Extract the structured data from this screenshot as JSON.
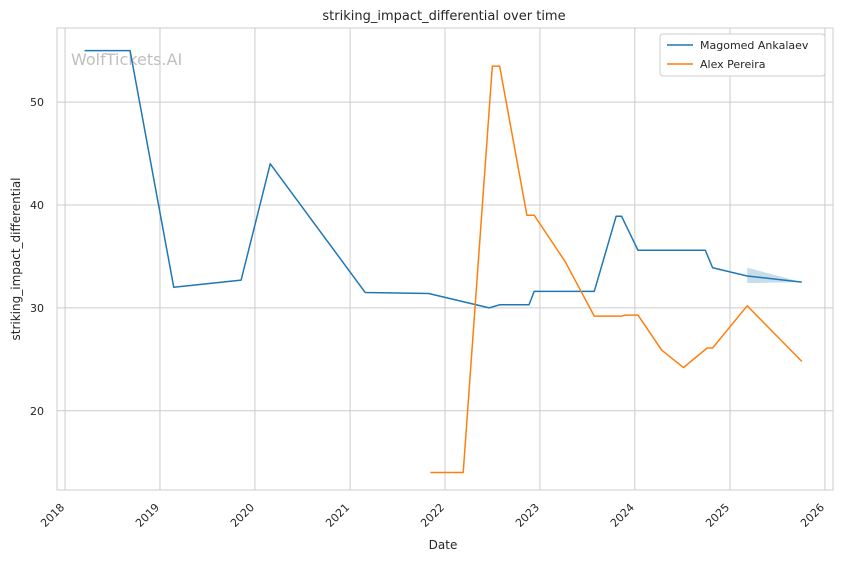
{
  "chart_data": {
    "type": "line",
    "title": "striking_impact_differential over time",
    "xlabel": "Date",
    "ylabel": "striking_impact_differential",
    "watermark": "WolfTickets.AI",
    "x_ticks": [
      "2018",
      "2019",
      "2020",
      "2021",
      "2022",
      "2023",
      "2024",
      "2025",
      "2026"
    ],
    "y_ticks": [
      20,
      30,
      40,
      50
    ],
    "xlim": [
      "2017-12-01",
      "2026-02-01"
    ],
    "ylim": [
      12.3,
      57.2
    ],
    "grid": true,
    "legend_position": "top-right",
    "series": [
      {
        "name": "Magomed Ankalaev",
        "color": "#1f77b4",
        "points": [
          [
            "2018-03-17",
            55.0
          ],
          [
            "2018-09-08",
            55.0
          ],
          [
            "2019-02-23",
            32.0
          ],
          [
            "2019-11-09",
            32.7
          ],
          [
            "2020-02-29",
            44.0
          ],
          [
            "2021-02-28",
            31.5
          ],
          [
            "2021-10-30",
            31.4
          ],
          [
            "2022-06-20",
            30.0
          ],
          [
            "2022-07-30",
            30.3
          ],
          [
            "2022-11-20",
            30.3
          ],
          [
            "2022-12-10",
            31.6
          ],
          [
            "2023-07-29",
            31.6
          ],
          [
            "2023-10-21",
            38.9
          ],
          [
            "2023-11-11",
            38.9
          ],
          [
            "2024-01-13",
            35.6
          ],
          [
            "2024-09-28",
            35.6
          ],
          [
            "2024-10-26",
            33.9
          ],
          [
            "2025-03-08",
            33.1
          ],
          [
            "2025-10-04",
            32.5
          ]
        ],
        "band": [
          [
            "2025-03-08",
            32.4,
            33.9
          ],
          [
            "2025-10-04",
            32.5,
            32.5
          ]
        ]
      },
      {
        "name": "Alex Pereira",
        "color": "#ff7f0e",
        "points": [
          [
            "2021-11-06",
            14.0
          ],
          [
            "2022-03-12",
            14.0
          ],
          [
            "2022-07-02",
            53.5
          ],
          [
            "2022-07-30",
            53.5
          ],
          [
            "2022-11-12",
            39.0
          ],
          [
            "2022-12-10",
            39.0
          ],
          [
            "2023-04-08",
            34.5
          ],
          [
            "2023-07-29",
            29.2
          ],
          [
            "2023-11-11",
            29.2
          ],
          [
            "2023-11-25",
            29.3
          ],
          [
            "2024-01-13",
            29.3
          ],
          [
            "2024-04-13",
            25.9
          ],
          [
            "2024-07-06",
            24.2
          ],
          [
            "2024-10-05",
            26.1
          ],
          [
            "2024-10-26",
            26.1
          ],
          [
            "2025-03-08",
            30.2
          ],
          [
            "2025-10-04",
            24.8
          ]
        ]
      }
    ]
  }
}
